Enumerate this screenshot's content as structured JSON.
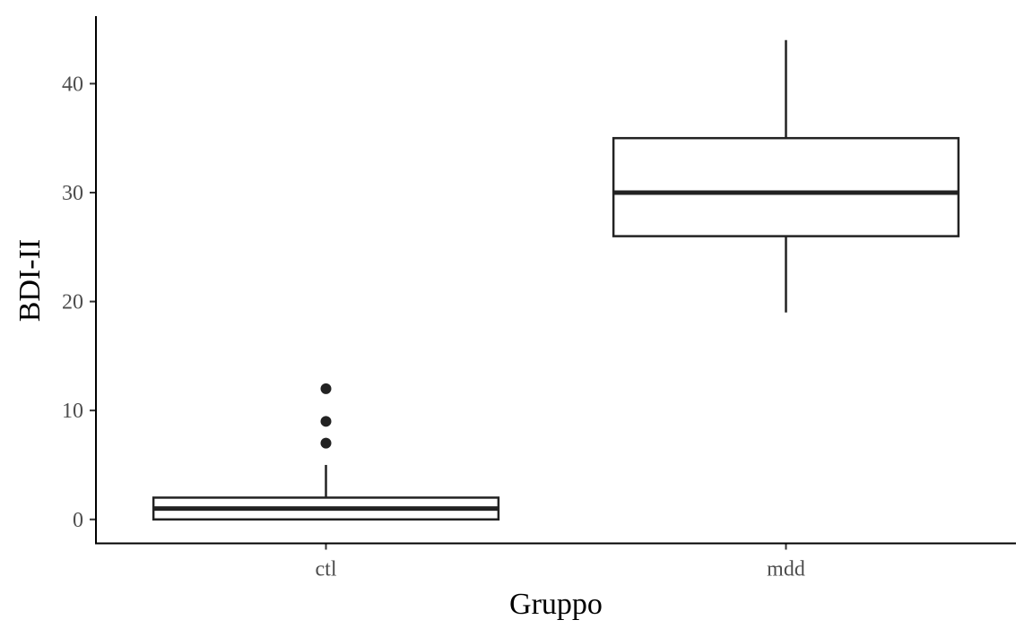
{
  "chart_data": {
    "type": "boxplot",
    "xlabel": "Gruppo",
    "ylabel": "BDI-II",
    "categories": [
      "ctl",
      "mdd"
    ],
    "ylim": [
      -2.2,
      46.2
    ],
    "yticks": [
      0,
      10,
      20,
      30,
      40
    ],
    "grid": false,
    "boxes": [
      {
        "category": "ctl",
        "whisker_low": 0,
        "q1": 0,
        "median": 1,
        "q3": 2,
        "whisker_high": 5,
        "outliers": [
          7,
          9,
          12
        ]
      },
      {
        "category": "mdd",
        "whisker_low": 19,
        "q1": 26,
        "median": 30,
        "q3": 35,
        "whisker_high": 44,
        "outliers": []
      }
    ]
  }
}
